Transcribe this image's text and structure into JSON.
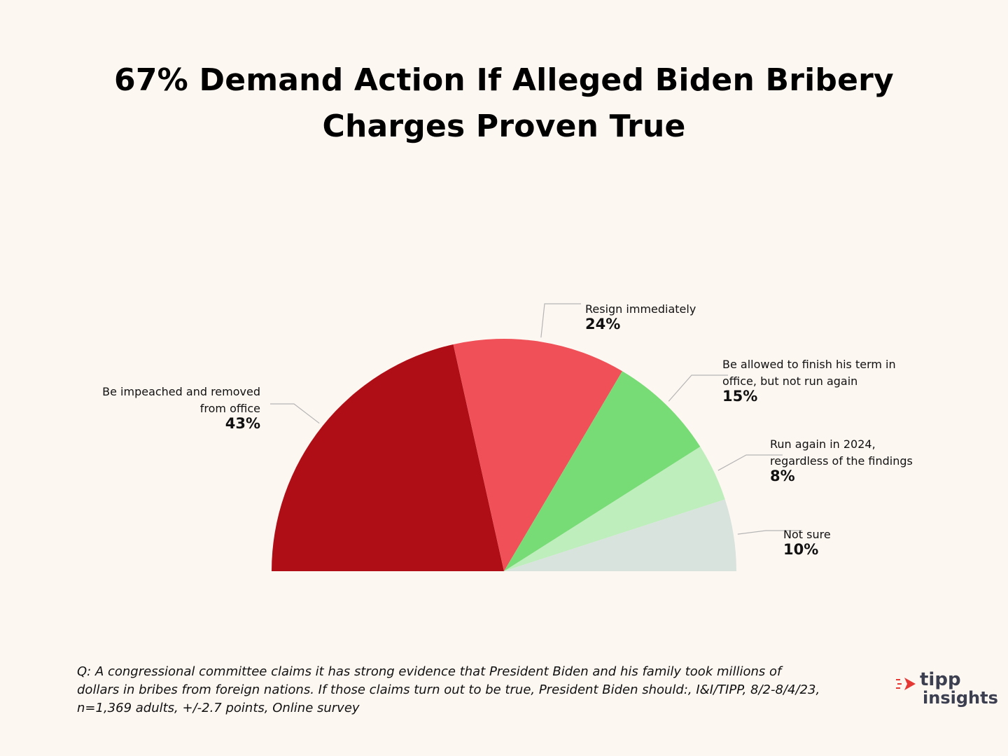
{
  "chart_data": {
    "type": "pie",
    "variant": "half-donut-semicircle",
    "title_lines": [
      "67% Demand Action If Alleged Biden Bribery",
      "Charges Proven True"
    ],
    "slices": [
      {
        "label_lines": [
          "Be impeached and removed",
          "from office"
        ],
        "value": 43,
        "value_label": "43%",
        "color": "#b00e17"
      },
      {
        "label_lines": [
          "Resign immediately"
        ],
        "value": 24,
        "value_label": "24%",
        "color": "#f05158"
      },
      {
        "label_lines": [
          "Be allowed to finish his term in",
          "office, but not run again"
        ],
        "value": 15,
        "value_label": "15%",
        "color": "#78dc76"
      },
      {
        "label_lines": [
          "Run again in 2024,",
          "regardless of the findings"
        ],
        "value": 8,
        "value_label": "8%",
        "color": "#bdeebc"
      },
      {
        "label_lines": [
          "Not sure"
        ],
        "value": 10,
        "value_label": "10%",
        "color": "#d8e3dd"
      }
    ]
  },
  "footnote_lines": [
    "Q: A congressional committee claims it has strong evidence that President Biden and his family took millions of",
    "dollars in bribes from foreign nations. If those claims turn out to be true, President Biden should:, I&I/TIPP, 8/2-8/4/23,",
    "n=1,369 adults, +/-2.7 points,  Online survey"
  ],
  "logo": {
    "word1": "tipp",
    "word2": "insights",
    "mark_color": "#e53935",
    "text_color": "#3b3f50"
  },
  "colors": {
    "background": "#fdf7f2",
    "leader_line": "#b5b5b5"
  }
}
